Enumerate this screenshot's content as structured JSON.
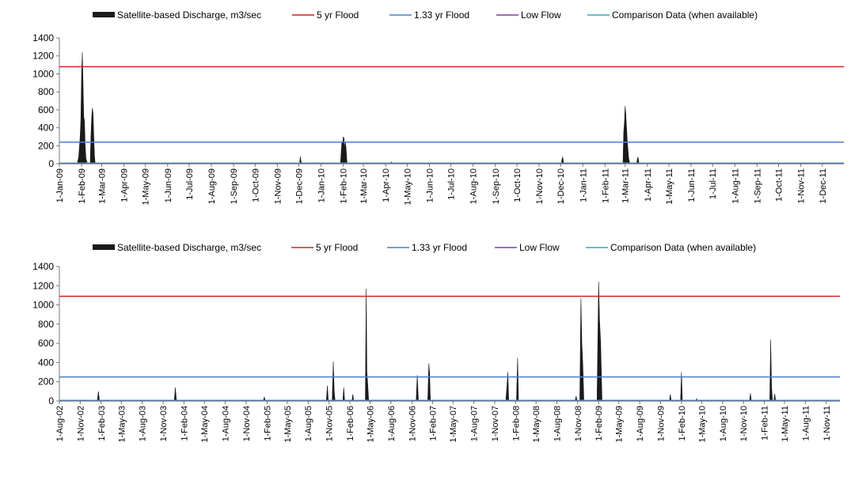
{
  "chart_data": [
    {
      "type": "area",
      "legend": [
        {
          "label": "Satellite-based Discharge, m3/sec",
          "color": "#1a1a1a",
          "kind": "area"
        },
        {
          "label": "5 yr Flood",
          "color": "#d42020",
          "kind": "line"
        },
        {
          "label": "1.33 yr Flood",
          "color": "#4a7ec9",
          "kind": "line"
        },
        {
          "label": "Low Flow",
          "color": "#7b3f9b",
          "kind": "line"
        },
        {
          "label": "Comparison Data (when available)",
          "color": "#3aa6b9",
          "kind": "line"
        }
      ],
      "legend_position": "top",
      "ylim": [
        0,
        1400
      ],
      "y_ticks": [
        "0",
        "200",
        "400",
        "600",
        "800",
        "1000",
        "1200",
        "1400"
      ],
      "x_range": [
        "2009-01-01",
        "2011-12-31"
      ],
      "x_ticks": [
        {
          "date": "2009-01-01",
          "label": "1-Jan-09"
        },
        {
          "date": "2009-02-01",
          "label": "1-Feb-09"
        },
        {
          "date": "2009-03-01",
          "label": "1-Mar-09"
        },
        {
          "date": "2009-04-01",
          "label": "1-Apr-09"
        },
        {
          "date": "2009-05-01",
          "label": "1-May-09"
        },
        {
          "date": "2009-06-01",
          "label": "1-Jun-09"
        },
        {
          "date": "2009-07-01",
          "label": "1-Jul-09"
        },
        {
          "date": "2009-08-01",
          "label": "1-Aug-09"
        },
        {
          "date": "2009-09-01",
          "label": "1-Sep-09"
        },
        {
          "date": "2009-10-01",
          "label": "1-Oct-09"
        },
        {
          "date": "2009-11-01",
          "label": "1-Nov-09"
        },
        {
          "date": "2009-12-01",
          "label": "1-Dec-09"
        },
        {
          "date": "2010-01-01",
          "label": "1-Jan-10"
        },
        {
          "date": "2010-02-01",
          "label": "1-Feb-10"
        },
        {
          "date": "2010-03-01",
          "label": "1-Mar-10"
        },
        {
          "date": "2010-04-01",
          "label": "1-Apr-10"
        },
        {
          "date": "2010-05-01",
          "label": "1-May-10"
        },
        {
          "date": "2010-06-01",
          "label": "1-Jun-10"
        },
        {
          "date": "2010-07-01",
          "label": "1-Jul-10"
        },
        {
          "date": "2010-08-01",
          "label": "1-Aug-10"
        },
        {
          "date": "2010-09-01",
          "label": "1-Sep-10"
        },
        {
          "date": "2010-10-01",
          "label": "1-Oct-10"
        },
        {
          "date": "2010-11-01",
          "label": "1-Nov-10"
        },
        {
          "date": "2010-12-01",
          "label": "1-Dec-10"
        },
        {
          "date": "2011-01-01",
          "label": "1-Jan-11"
        },
        {
          "date": "2011-02-01",
          "label": "1-Feb-11"
        },
        {
          "date": "2011-03-01",
          "label": "1-Mar-11"
        },
        {
          "date": "2011-04-01",
          "label": "1-Apr-11"
        },
        {
          "date": "2011-05-01",
          "label": "1-May-11"
        },
        {
          "date": "2011-06-01",
          "label": "1-Jun-11"
        },
        {
          "date": "2011-07-01",
          "label": "1-Jul-11"
        },
        {
          "date": "2011-08-01",
          "label": "1-Aug-11"
        },
        {
          "date": "2011-09-01",
          "label": "1-Sep-11"
        },
        {
          "date": "2011-10-01",
          "label": "1-Oct-11"
        },
        {
          "date": "2011-11-01",
          "label": "1-Nov-11"
        },
        {
          "date": "2011-12-01",
          "label": "1-Dec-11"
        }
      ],
      "thresholds": {
        "five_yr_flood": 1080,
        "one_33_yr_flood": 240,
        "low_flow": 0
      },
      "series": [
        {
          "name": "Satellite-based Discharge, m3/sec",
          "points": [
            [
              "2009-01-01",
              0
            ],
            [
              "2009-01-26",
              0
            ],
            [
              "2009-01-28",
              80
            ],
            [
              "2009-01-30",
              300
            ],
            [
              "2009-01-31",
              500
            ],
            [
              "2009-02-01",
              1000
            ],
            [
              "2009-02-02",
              1240
            ],
            [
              "2009-02-03",
              900
            ],
            [
              "2009-02-04",
              520
            ],
            [
              "2009-02-05",
              480
            ],
            [
              "2009-02-06",
              200
            ],
            [
              "2009-02-07",
              60
            ],
            [
              "2009-02-09",
              0
            ],
            [
              "2009-02-13",
              0
            ],
            [
              "2009-02-14",
              300
            ],
            [
              "2009-02-15",
              500
            ],
            [
              "2009-02-16",
              620
            ],
            [
              "2009-02-17",
              560
            ],
            [
              "2009-02-18",
              300
            ],
            [
              "2009-02-19",
              80
            ],
            [
              "2009-02-20",
              0
            ],
            [
              "2009-12-02",
              0
            ],
            [
              "2009-12-03",
              80
            ],
            [
              "2009-12-04",
              30
            ],
            [
              "2009-12-05",
              0
            ],
            [
              "2010-01-28",
              0
            ],
            [
              "2010-01-29",
              120
            ],
            [
              "2010-01-30",
              250
            ],
            [
              "2010-01-31",
              220
            ],
            [
              "2010-02-01",
              300
            ],
            [
              "2010-02-02",
              280
            ],
            [
              "2010-02-03",
              170
            ],
            [
              "2010-02-04",
              240
            ],
            [
              "2010-02-05",
              150
            ],
            [
              "2010-02-06",
              20
            ],
            [
              "2010-02-07",
              0
            ],
            [
              "2010-04-08",
              0
            ],
            [
              "2010-04-09",
              20
            ],
            [
              "2010-04-10",
              0
            ],
            [
              "2010-12-02",
              0
            ],
            [
              "2010-12-03",
              50
            ],
            [
              "2010-12-04",
              75
            ],
            [
              "2010-12-05",
              20
            ],
            [
              "2010-12-06",
              0
            ],
            [
              "2011-02-26",
              0
            ],
            [
              "2011-02-27",
              350
            ],
            [
              "2011-02-28",
              450
            ],
            [
              "2011-03-01",
              640
            ],
            [
              "2011-03-02",
              550
            ],
            [
              "2011-03-03",
              400
            ],
            [
              "2011-03-04",
              250
            ],
            [
              "2011-03-05",
              150
            ],
            [
              "2011-03-06",
              60
            ],
            [
              "2011-03-07",
              20
            ],
            [
              "2011-03-08",
              0
            ],
            [
              "2011-03-17",
              0
            ],
            [
              "2011-03-18",
              50
            ],
            [
              "2011-03-19",
              75
            ],
            [
              "2011-03-20",
              20
            ],
            [
              "2011-03-21",
              0
            ],
            [
              "2011-12-31",
              0
            ]
          ]
        }
      ]
    },
    {
      "type": "area",
      "legend": [
        {
          "label": "Satellite-based Discharge, m3/sec",
          "color": "#1a1a1a",
          "kind": "area"
        },
        {
          "label": "5 yr Flood",
          "color": "#d42020",
          "kind": "line"
        },
        {
          "label": "1.33 yr Flood",
          "color": "#4a7ec9",
          "kind": "line"
        },
        {
          "label": "Low Flow",
          "color": "#7b3f9b",
          "kind": "line"
        },
        {
          "label": "Comparison Data (when available)",
          "color": "#3aa6b9",
          "kind": "line"
        }
      ],
      "legend_position": "top",
      "ylim": [
        0,
        1400
      ],
      "y_ticks": [
        "0",
        "200",
        "400",
        "600",
        "800",
        "1000",
        "1200",
        "1400"
      ],
      "x_range": [
        "2002-08-01",
        "2011-12-31"
      ],
      "x_ticks": [
        {
          "date": "2002-08-01",
          "label": "1-Aug-02"
        },
        {
          "date": "2002-11-01",
          "label": "1-Nov-02"
        },
        {
          "date": "2003-02-01",
          "label": "1-Feb-03"
        },
        {
          "date": "2003-05-01",
          "label": "1-May-03"
        },
        {
          "date": "2003-08-01",
          "label": "1-Aug-03"
        },
        {
          "date": "2003-11-01",
          "label": "1-Nov-03"
        },
        {
          "date": "2004-02-01",
          "label": "1-Feb-04"
        },
        {
          "date": "2004-05-01",
          "label": "1-May-04"
        },
        {
          "date": "2004-08-01",
          "label": "1-Aug-04"
        },
        {
          "date": "2004-11-01",
          "label": "1-Nov-04"
        },
        {
          "date": "2005-02-01",
          "label": "1-Feb-05"
        },
        {
          "date": "2005-05-01",
          "label": "1-May-05"
        },
        {
          "date": "2005-08-01",
          "label": "1-Aug-05"
        },
        {
          "date": "2005-11-01",
          "label": "1-Nov-05"
        },
        {
          "date": "2006-02-01",
          "label": "1-Feb-06"
        },
        {
          "date": "2006-05-01",
          "label": "1-May-06"
        },
        {
          "date": "2006-08-01",
          "label": "1-Aug-06"
        },
        {
          "date": "2006-11-01",
          "label": "1-Nov-06"
        },
        {
          "date": "2007-02-01",
          "label": "1-Feb-07"
        },
        {
          "date": "2007-05-01",
          "label": "1-May-07"
        },
        {
          "date": "2007-08-01",
          "label": "1-Aug-07"
        },
        {
          "date": "2007-11-01",
          "label": "1-Nov-07"
        },
        {
          "date": "2008-02-01",
          "label": "1-Feb-08"
        },
        {
          "date": "2008-05-01",
          "label": "1-May-08"
        },
        {
          "date": "2008-08-01",
          "label": "1-Aug-08"
        },
        {
          "date": "2008-11-01",
          "label": "1-Nov-08"
        },
        {
          "date": "2009-02-01",
          "label": "1-Feb-09"
        },
        {
          "date": "2009-05-01",
          "label": "1-May-09"
        },
        {
          "date": "2009-08-01",
          "label": "1-Aug-09"
        },
        {
          "date": "2009-11-01",
          "label": "1-Nov-09"
        },
        {
          "date": "2010-02-01",
          "label": "1-Feb-10"
        },
        {
          "date": "2010-05-01",
          "label": "1-May-10"
        },
        {
          "date": "2010-08-01",
          "label": "1-Aug-10"
        },
        {
          "date": "2010-11-01",
          "label": "1-Nov-10"
        },
        {
          "date": "2011-02-01",
          "label": "1-Feb-11"
        },
        {
          "date": "2011-05-01",
          "label": "1-May-11"
        },
        {
          "date": "2011-08-01",
          "label": "1-Aug-11"
        },
        {
          "date": "2011-11-01",
          "label": "1-Nov-11"
        }
      ],
      "thresholds": {
        "five_yr_flood": 1090,
        "one_33_yr_flood": 250,
        "low_flow": 0
      },
      "series": [
        {
          "name": "Satellite-based Discharge, m3/sec",
          "points": [
            [
              "2002-08-01",
              0
            ],
            [
              "2003-01-15",
              0
            ],
            [
              "2003-01-20",
              100
            ],
            [
              "2003-01-25",
              0
            ],
            [
              "2003-12-20",
              0
            ],
            [
              "2003-12-25",
              140
            ],
            [
              "2003-12-30",
              0
            ],
            [
              "2005-01-15",
              0
            ],
            [
              "2005-01-20",
              40
            ],
            [
              "2005-01-25",
              0
            ],
            [
              "2005-10-20",
              0
            ],
            [
              "2005-10-25",
              160
            ],
            [
              "2005-10-29",
              0
            ],
            [
              "2005-11-15",
              0
            ],
            [
              "2005-11-20",
              410
            ],
            [
              "2005-11-24",
              100
            ],
            [
              "2005-11-28",
              0
            ],
            [
              "2006-01-01",
              0
            ],
            [
              "2006-01-05",
              140
            ],
            [
              "2006-01-09",
              0
            ],
            [
              "2006-02-10",
              0
            ],
            [
              "2006-02-14",
              70
            ],
            [
              "2006-02-18",
              0
            ],
            [
              "2006-04-10",
              0
            ],
            [
              "2006-04-14",
              1170
            ],
            [
              "2006-04-17",
              300
            ],
            [
              "2006-04-20",
              200
            ],
            [
              "2006-04-25",
              0
            ],
            [
              "2006-11-20",
              0
            ],
            [
              "2006-11-25",
              270
            ],
            [
              "2006-11-30",
              0
            ],
            [
              "2007-01-10",
              0
            ],
            [
              "2007-01-15",
              390
            ],
            [
              "2007-01-18",
              300
            ],
            [
              "2007-01-22",
              0
            ],
            [
              "2007-12-20",
              0
            ],
            [
              "2007-12-25",
              150
            ],
            [
              "2007-12-29",
              300
            ],
            [
              "2008-01-02",
              0
            ],
            [
              "2008-02-05",
              0
            ],
            [
              "2008-02-10",
              450
            ],
            [
              "2008-02-14",
              0
            ],
            [
              "2008-10-20",
              0
            ],
            [
              "2008-10-25",
              50
            ],
            [
              "2008-10-29",
              0
            ],
            [
              "2008-11-10",
              0
            ],
            [
              "2008-11-15",
              1070
            ],
            [
              "2008-11-19",
              600
            ],
            [
              "2008-11-23",
              400
            ],
            [
              "2008-11-28",
              0
            ],
            [
              "2009-01-25",
              0
            ],
            [
              "2009-02-01",
              1240
            ],
            [
              "2009-02-05",
              850
            ],
            [
              "2009-02-10",
              600
            ],
            [
              "2009-02-16",
              0
            ],
            [
              "2009-12-10",
              0
            ],
            [
              "2009-12-14",
              70
            ],
            [
              "2009-12-18",
              0
            ],
            [
              "2010-01-28",
              0
            ],
            [
              "2010-02-01",
              300
            ],
            [
              "2010-02-05",
              0
            ],
            [
              "2010-04-05",
              0
            ],
            [
              "2010-04-09",
              25
            ],
            [
              "2010-04-13",
              0
            ],
            [
              "2010-11-28",
              0
            ],
            [
              "2010-12-02",
              80
            ],
            [
              "2010-12-06",
              0
            ],
            [
              "2011-02-25",
              0
            ],
            [
              "2011-03-01",
              640
            ],
            [
              "2011-03-05",
              150
            ],
            [
              "2011-03-09",
              0
            ],
            [
              "2011-03-15",
              0
            ],
            [
              "2011-03-19",
              75
            ],
            [
              "2011-03-23",
              0
            ],
            [
              "2011-12-31",
              0
            ]
          ]
        }
      ]
    }
  ]
}
